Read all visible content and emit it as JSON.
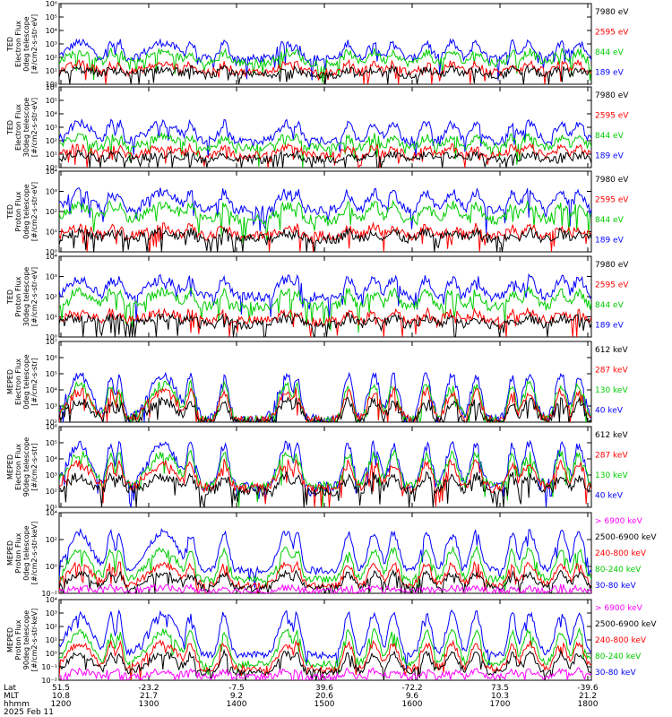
{
  "date_label": "2025 Feb 11",
  "footer": {
    "row_labels": [
      "Lat",
      "MLT",
      "hhmm"
    ],
    "columns": [
      {
        "lat": "51.5",
        "mlt": "10.8",
        "hhmm": "1200"
      },
      {
        "lat": "-23.2",
        "mlt": "21.7",
        "hhmm": "1300"
      },
      {
        "lat": "-7.5",
        "mlt": "9.2",
        "hhmm": "1400"
      },
      {
        "lat": "39.6",
        "mlt": "20.6",
        "hhmm": "1500"
      },
      {
        "lat": "-72.2",
        "mlt": "9.6",
        "hhmm": "1600"
      },
      {
        "lat": "73.5",
        "mlt": "10.3",
        "hhmm": "1700"
      },
      {
        "lat": "-39.6",
        "mlt": "21.2",
        "hhmm": "1800"
      }
    ]
  },
  "chart_data": [
    {
      "type": "line",
      "instrument": "TED",
      "ylabel": [
        "TED",
        "Electron Flux",
        "0deg telescope",
        "[#/cm2-s-str-eV]"
      ],
      "yscale": "log",
      "ylim": [
        1,
        1000000
      ],
      "yticks": [
        "10⁰",
        "10¹",
        "10²",
        "10³",
        "10⁴",
        "10⁵",
        "10⁶"
      ],
      "x": [
        "1200",
        "1300",
        "1400",
        "1500",
        "1600",
        "1700",
        "1800"
      ],
      "series": [
        {
          "name": "7980 eV",
          "color": "#000000",
          "base": 0.7,
          "amp": 0.4
        },
        {
          "name": "2595 eV",
          "color": "#ff0000",
          "base": 0.9,
          "amp": 0.6
        },
        {
          "name": "844 eV",
          "color": "#00cc00",
          "base": 1.6,
          "amp": 0.8
        },
        {
          "name": "189 eV",
          "color": "#0000ff",
          "base": 1.9,
          "amp": 1.2
        }
      ]
    },
    {
      "type": "line",
      "instrument": "TED",
      "ylabel": [
        "TED",
        "Electron Flux",
        "30deg telescope",
        "[#/cm2-s-str-eV]"
      ],
      "yscale": "log",
      "ylim": [
        1,
        1000000
      ],
      "yticks": [
        "10⁰",
        "10¹",
        "10²",
        "10³",
        "10⁴",
        "10⁵",
        "10⁶"
      ],
      "x": [
        "1200",
        "1300",
        "1400",
        "1500",
        "1600",
        "1700",
        "1800"
      ],
      "series": [
        {
          "name": "7980 eV",
          "color": "#000000",
          "base": 0.6,
          "amp": 0.4
        },
        {
          "name": "2595 eV",
          "color": "#ff0000",
          "base": 0.9,
          "amp": 0.6
        },
        {
          "name": "844 eV",
          "color": "#00cc00",
          "base": 1.5,
          "amp": 0.8
        },
        {
          "name": "189 eV",
          "color": "#0000ff",
          "base": 2.0,
          "amp": 1.3
        }
      ]
    },
    {
      "type": "line",
      "instrument": "TED",
      "ylabel": [
        "TED",
        "Proton Flux",
        "0deg telescope",
        "[#/cm2-s-str-eV]"
      ],
      "yscale": "log",
      "ylim": [
        1,
        100000
      ],
      "yticks": [
        "10⁰",
        "10¹",
        "10²",
        "10³",
        "10⁴"
      ],
      "x": [
        "1200",
        "1300",
        "1400",
        "1500",
        "1600",
        "1700",
        "1800"
      ],
      "series": [
        {
          "name": "7980 eV",
          "color": "#000000",
          "base": 0.8,
          "amp": 0.4
        },
        {
          "name": "2595 eV",
          "color": "#ff0000",
          "base": 1.0,
          "amp": 0.5
        },
        {
          "name": "844 eV",
          "color": "#00cc00",
          "base": 2.0,
          "amp": 0.9
        },
        {
          "name": "189 eV",
          "color": "#0000ff",
          "base": 2.6,
          "amp": 1.1
        }
      ]
    },
    {
      "type": "line",
      "instrument": "TED",
      "ylabel": [
        "TED",
        "Proton Flux",
        "30deg telescope",
        "[#/cm2-s-str-eV]"
      ],
      "yscale": "log",
      "ylim": [
        1,
        100000
      ],
      "yticks": [
        "10⁰",
        "10¹",
        "10²",
        "10³",
        "10⁴"
      ],
      "x": [
        "1200",
        "1300",
        "1400",
        "1500",
        "1600",
        "1700",
        "1800"
      ],
      "series": [
        {
          "name": "7980 eV",
          "color": "#000000",
          "base": 0.8,
          "amp": 0.4
        },
        {
          "name": "2595 eV",
          "color": "#ff0000",
          "base": 1.0,
          "amp": 0.5
        },
        {
          "name": "844 eV",
          "color": "#00cc00",
          "base": 1.9,
          "amp": 0.9
        },
        {
          "name": "189 eV",
          "color": "#0000ff",
          "base": 2.5,
          "amp": 1.1
        }
      ]
    },
    {
      "type": "line",
      "instrument": "MEPED",
      "ylabel": [
        "MEPED",
        "Electron Flux",
        "0deg telescope",
        "[#/cm2-s-str]"
      ],
      "yscale": "log",
      "ylim": [
        100,
        10000000
      ],
      "yticks": [
        "10²",
        "10³",
        "10⁴",
        "10⁵",
        "10⁶",
        "10⁷"
      ],
      "x": [
        "1200",
        "1300",
        "1400",
        "1500",
        "1600",
        "1700",
        "1800"
      ],
      "series": [
        {
          "name": "612 keV",
          "color": "#000000",
          "base": 2.0,
          "amp": 1.3
        },
        {
          "name": "287 keV",
          "color": "#ff0000",
          "base": 2.1,
          "amp": 1.8
        },
        {
          "name": "130 keV",
          "color": "#00cc00",
          "base": 2.1,
          "amp": 2.2
        },
        {
          "name": "40 keV",
          "color": "#0000ff",
          "base": 2.2,
          "amp": 2.7
        }
      ]
    },
    {
      "type": "line",
      "instrument": "MEPED",
      "ylabel": [
        "MEPED",
        "Electron Flux",
        "90deg telescope",
        "[#/cm2-s-str]"
      ],
      "yscale": "log",
      "ylim": [
        10,
        1000000
      ],
      "yticks": [
        "10¹",
        "10²",
        "10³",
        "10⁴",
        "10⁵",
        "10⁶"
      ],
      "x": [
        "1200",
        "1300",
        "1400",
        "1500",
        "1600",
        "1700",
        "1800"
      ],
      "series": [
        {
          "name": "612 keV",
          "color": "#000000",
          "base": 2.0,
          "amp": 0.9
        },
        {
          "name": "287 keV",
          "color": "#ff0000",
          "base": 2.2,
          "amp": 1.5
        },
        {
          "name": "130 keV",
          "color": "#00cc00",
          "base": 2.3,
          "amp": 2.0
        },
        {
          "name": "40 keV",
          "color": "#0000ff",
          "base": 2.3,
          "amp": 2.6
        }
      ]
    },
    {
      "type": "line",
      "instrument": "MEPED",
      "ylabel": [
        "MEPED",
        "Proton Flux",
        "0deg telescope",
        "[#/cm2-s-str-keV]"
      ],
      "yscale": "log",
      "ylim": [
        0.01,
        100000
      ],
      "yticks": [
        "10⁻²",
        "10⁰",
        "10²",
        "10⁴"
      ],
      "x": [
        "1200",
        "1300",
        "1400",
        "1500",
        "1600",
        "1700",
        "1800"
      ],
      "series": [
        {
          "name": "> 6900 keV",
          "color": "#ff00ff",
          "base": -1.8,
          "amp": 0.3
        },
        {
          "name": "2500-6900 keV",
          "color": "#000000",
          "base": -1.5,
          "amp": 1.2
        },
        {
          "name": "240-800 keV",
          "color": "#ff0000",
          "base": -1.3,
          "amp": 1.8
        },
        {
          "name": "80-240 keV",
          "color": "#00cc00",
          "base": -0.8,
          "amp": 2.6
        },
        {
          "name": "30-80 keV",
          "color": "#0000ff",
          "base": 0.0,
          "amp": 3.3
        }
      ]
    },
    {
      "type": "line",
      "instrument": "MEPED",
      "ylabel": [
        "MEPED",
        "Proton Flux",
        "90deg telescope",
        "[#/cm2-s-str-keV]"
      ],
      "yscale": "log",
      "ylim": [
        0.01,
        100000
      ],
      "yticks": [
        "10⁻²",
        "10⁻¹",
        "10⁰",
        "10¹",
        "10²",
        "10³",
        "10⁴"
      ],
      "x": [
        "1200",
        "1300",
        "1400",
        "1500",
        "1600",
        "1700",
        "1800"
      ],
      "series": [
        {
          "name": "> 6900 keV",
          "color": "#ff00ff",
          "base": -1.7,
          "amp": 0.5
        },
        {
          "name": "2500-6900 keV",
          "color": "#000000",
          "base": -1.3,
          "amp": 1.6
        },
        {
          "name": "240-800 keV",
          "color": "#ff0000",
          "base": -1.0,
          "amp": 2.2
        },
        {
          "name": "80-240 keV",
          "color": "#00cc00",
          "base": -0.6,
          "amp": 2.8
        },
        {
          "name": "30-80 keV",
          "color": "#0000ff",
          "base": 0.2,
          "amp": 3.6
        }
      ]
    }
  ]
}
